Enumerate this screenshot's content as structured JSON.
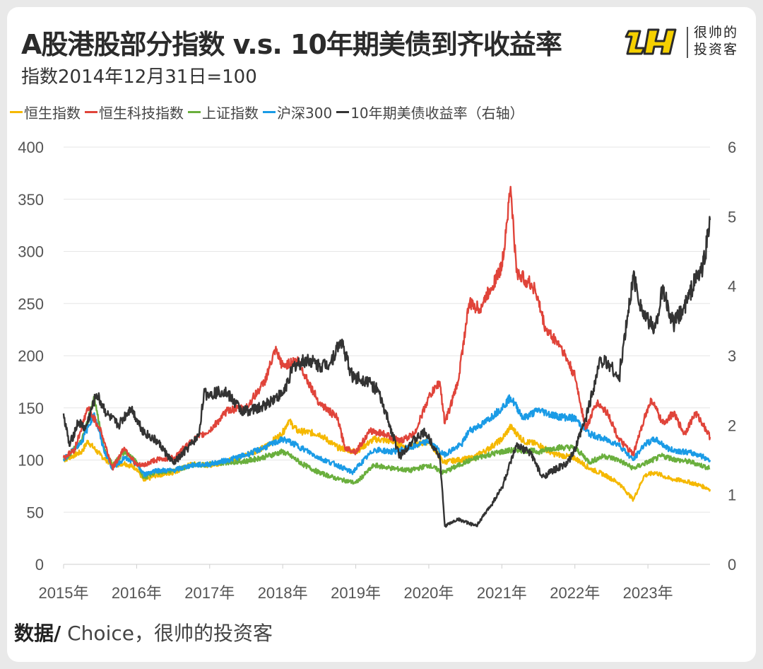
{
  "header": {
    "title": "A股港股部分指数 v.s. 10年期美债到齐收益率",
    "subtitle": "指数2014年12月31日=100"
  },
  "logo": {
    "line1": "很帅的",
    "line2": "投资客"
  },
  "source": {
    "label": "数据/",
    "text": " Choice，很帅的投资客"
  },
  "colors": {
    "hsi": "#f5b800",
    "hstech": "#e0443a",
    "sse": "#6aaf3d",
    "csi300": "#1a9be6",
    "ust10y": "#333333",
    "grid": "#e6e6e6",
    "axis_text": "#555555"
  },
  "chart_data": {
    "type": "line",
    "title": "A股港股部分指数 v.s. 10年期美债到齐收益率",
    "subtitle": "指数2014年12月31日=100",
    "x_tick_labels": [
      "2015年",
      "2016年",
      "2017年",
      "2018年",
      "2019年",
      "2020年",
      "2021年",
      "2022年",
      "2023年"
    ],
    "x_range": [
      2015.0,
      2023.85
    ],
    "y_left": {
      "ticks": [
        0,
        50,
        100,
        150,
        200,
        250,
        300,
        350,
        400
      ],
      "range": [
        0,
        400
      ]
    },
    "y_right": {
      "ticks": [
        0,
        1,
        2,
        3,
        4,
        5,
        6
      ],
      "range": [
        0,
        6
      ],
      "label": "10年期美债收益率（右轴）"
    },
    "legend_position": "top-left",
    "series": [
      {
        "key": "hsi",
        "name": "恒生指数",
        "axis": "left",
        "points": [
          [
            2015.0,
            100
          ],
          [
            2015.25,
            108
          ],
          [
            2015.33,
            118
          ],
          [
            2015.5,
            105
          ],
          [
            2015.67,
            95
          ],
          [
            2015.83,
            97
          ],
          [
            2016.0,
            92
          ],
          [
            2016.1,
            80
          ],
          [
            2016.25,
            85
          ],
          [
            2016.5,
            88
          ],
          [
            2016.75,
            96
          ],
          [
            2017.0,
            95
          ],
          [
            2017.25,
            99
          ],
          [
            2017.5,
            105
          ],
          [
            2017.75,
            112
          ],
          [
            2018.0,
            126
          ],
          [
            2018.08,
            138
          ],
          [
            2018.2,
            128
          ],
          [
            2018.5,
            125
          ],
          [
            2018.75,
            112
          ],
          [
            2019.0,
            108
          ],
          [
            2019.25,
            120
          ],
          [
            2019.5,
            118
          ],
          [
            2019.7,
            112
          ],
          [
            2020.0,
            118
          ],
          [
            2020.2,
            98
          ],
          [
            2020.4,
            100
          ],
          [
            2020.6,
            102
          ],
          [
            2020.8,
            110
          ],
          [
            2021.0,
            120
          ],
          [
            2021.12,
            132
          ],
          [
            2021.3,
            118
          ],
          [
            2021.5,
            115
          ],
          [
            2021.7,
            106
          ],
          [
            2022.0,
            102
          ],
          [
            2022.2,
            92
          ],
          [
            2022.4,
            86
          ],
          [
            2022.6,
            78
          ],
          [
            2022.8,
            62
          ],
          [
            2022.95,
            85
          ],
          [
            2023.1,
            88
          ],
          [
            2023.3,
            82
          ],
          [
            2023.5,
            80
          ],
          [
            2023.7,
            76
          ],
          [
            2023.85,
            72
          ]
        ]
      },
      {
        "key": "hstech",
        "name": "恒生科技指数",
        "axis": "left",
        "points": [
          [
            2015.0,
            102
          ],
          [
            2015.15,
            110
          ],
          [
            2015.33,
            150
          ],
          [
            2015.5,
            130
          ],
          [
            2015.67,
            92
          ],
          [
            2015.83,
            112
          ],
          [
            2016.0,
            95
          ],
          [
            2016.1,
            95
          ],
          [
            2016.25,
            100
          ],
          [
            2016.5,
            102
          ],
          [
            2016.75,
            118
          ],
          [
            2017.0,
            128
          ],
          [
            2017.25,
            148
          ],
          [
            2017.5,
            150
          ],
          [
            2017.75,
            175
          ],
          [
            2017.9,
            205
          ],
          [
            2018.0,
            190
          ],
          [
            2018.2,
            196
          ],
          [
            2018.35,
            175
          ],
          [
            2018.5,
            155
          ],
          [
            2018.75,
            140
          ],
          [
            2018.85,
            112
          ],
          [
            2019.0,
            108
          ],
          [
            2019.2,
            128
          ],
          [
            2019.4,
            125
          ],
          [
            2019.6,
            118
          ],
          [
            2019.8,
            125
          ],
          [
            2020.0,
            160
          ],
          [
            2020.15,
            175
          ],
          [
            2020.22,
            135
          ],
          [
            2020.4,
            175
          ],
          [
            2020.55,
            250
          ],
          [
            2020.7,
            245
          ],
          [
            2020.85,
            265
          ],
          [
            2021.0,
            285
          ],
          [
            2021.12,
            362
          ],
          [
            2021.2,
            280
          ],
          [
            2021.45,
            265
          ],
          [
            2021.6,
            225
          ],
          [
            2021.8,
            210
          ],
          [
            2022.0,
            180
          ],
          [
            2022.15,
            130
          ],
          [
            2022.3,
            155
          ],
          [
            2022.45,
            145
          ],
          [
            2022.6,
            120
          ],
          [
            2022.8,
            105
          ],
          [
            2022.95,
            140
          ],
          [
            2023.05,
            158
          ],
          [
            2023.2,
            135
          ],
          [
            2023.35,
            145
          ],
          [
            2023.5,
            125
          ],
          [
            2023.65,
            145
          ],
          [
            2023.75,
            135
          ],
          [
            2023.85,
            122
          ]
        ]
      },
      {
        "key": "sse",
        "name": "上证指数",
        "axis": "left",
        "points": [
          [
            2015.0,
            100
          ],
          [
            2015.25,
            118
          ],
          [
            2015.42,
            160
          ],
          [
            2015.55,
            112
          ],
          [
            2015.67,
            95
          ],
          [
            2015.83,
            108
          ],
          [
            2016.0,
            98
          ],
          [
            2016.1,
            83
          ],
          [
            2016.25,
            88
          ],
          [
            2016.5,
            90
          ],
          [
            2016.75,
            95
          ],
          [
            2017.0,
            96
          ],
          [
            2017.25,
            98
          ],
          [
            2017.5,
            99
          ],
          [
            2017.75,
            103
          ],
          [
            2018.0,
            108
          ],
          [
            2018.08,
            105
          ],
          [
            2018.3,
            95
          ],
          [
            2018.5,
            88
          ],
          [
            2018.75,
            82
          ],
          [
            2019.0,
            78
          ],
          [
            2019.25,
            95
          ],
          [
            2019.5,
            92
          ],
          [
            2019.75,
            90
          ],
          [
            2020.0,
            95
          ],
          [
            2020.2,
            88
          ],
          [
            2020.5,
            98
          ],
          [
            2020.75,
            104
          ],
          [
            2021.0,
            108
          ],
          [
            2021.2,
            110
          ],
          [
            2021.5,
            108
          ],
          [
            2021.75,
            112
          ],
          [
            2022.0,
            112
          ],
          [
            2022.2,
            98
          ],
          [
            2022.4,
            104
          ],
          [
            2022.6,
            100
          ],
          [
            2022.8,
            92
          ],
          [
            2023.0,
            98
          ],
          [
            2023.2,
            104
          ],
          [
            2023.4,
            100
          ],
          [
            2023.6,
            98
          ],
          [
            2023.85,
            92
          ]
        ]
      },
      {
        "key": "csi300",
        "name": "沪深300",
        "axis": "left",
        "points": [
          [
            2015.0,
            100
          ],
          [
            2015.25,
            118
          ],
          [
            2015.42,
            145
          ],
          [
            2015.55,
            110
          ],
          [
            2015.67,
            92
          ],
          [
            2015.83,
            102
          ],
          [
            2016.0,
            96
          ],
          [
            2016.1,
            86
          ],
          [
            2016.25,
            90
          ],
          [
            2016.5,
            90
          ],
          [
            2016.75,
            95
          ],
          [
            2017.0,
            96
          ],
          [
            2017.25,
            100
          ],
          [
            2017.5,
            105
          ],
          [
            2017.75,
            112
          ],
          [
            2018.0,
            120
          ],
          [
            2018.08,
            118
          ],
          [
            2018.3,
            110
          ],
          [
            2018.5,
            102
          ],
          [
            2018.75,
            95
          ],
          [
            2018.95,
            88
          ],
          [
            2019.25,
            110
          ],
          [
            2019.5,
            108
          ],
          [
            2019.75,
            112
          ],
          [
            2020.0,
            118
          ],
          [
            2020.2,
            105
          ],
          [
            2020.45,
            115
          ],
          [
            2020.55,
            128
          ],
          [
            2020.75,
            135
          ],
          [
            2021.0,
            150
          ],
          [
            2021.12,
            160
          ],
          [
            2021.3,
            140
          ],
          [
            2021.5,
            148
          ],
          [
            2021.75,
            142
          ],
          [
            2022.0,
            140
          ],
          [
            2022.2,
            125
          ],
          [
            2022.4,
            120
          ],
          [
            2022.6,
            115
          ],
          [
            2022.8,
            100
          ],
          [
            2022.95,
            115
          ],
          [
            2023.1,
            120
          ],
          [
            2023.3,
            110
          ],
          [
            2023.5,
            108
          ],
          [
            2023.7,
            105
          ],
          [
            2023.85,
            100
          ]
        ]
      },
      {
        "key": "ust10y",
        "name": "10年期美债收益率（右轴）",
        "axis": "right",
        "points": [
          [
            2015.0,
            2.17
          ],
          [
            2015.08,
            1.7
          ],
          [
            2015.2,
            2.05
          ],
          [
            2015.3,
            1.95
          ],
          [
            2015.45,
            2.45
          ],
          [
            2015.6,
            2.15
          ],
          [
            2015.75,
            2.0
          ],
          [
            2015.92,
            2.25
          ],
          [
            2016.1,
            1.9
          ],
          [
            2016.3,
            1.75
          ],
          [
            2016.5,
            1.45
          ],
          [
            2016.6,
            1.55
          ],
          [
            2016.85,
            1.85
          ],
          [
            2016.92,
            2.45
          ],
          [
            2017.0,
            2.45
          ],
          [
            2017.2,
            2.5
          ],
          [
            2017.45,
            2.2
          ],
          [
            2017.7,
            2.25
          ],
          [
            2017.9,
            2.4
          ],
          [
            2018.0,
            2.45
          ],
          [
            2018.15,
            2.85
          ],
          [
            2018.35,
            2.95
          ],
          [
            2018.5,
            2.85
          ],
          [
            2018.65,
            2.9
          ],
          [
            2018.8,
            3.22
          ],
          [
            2018.95,
            2.7
          ],
          [
            2019.15,
            2.65
          ],
          [
            2019.3,
            2.5
          ],
          [
            2019.45,
            2.05
          ],
          [
            2019.6,
            1.55
          ],
          [
            2019.75,
            1.75
          ],
          [
            2019.95,
            1.9
          ],
          [
            2020.15,
            1.55
          ],
          [
            2020.22,
            0.55
          ],
          [
            2020.4,
            0.65
          ],
          [
            2020.65,
            0.55
          ],
          [
            2020.85,
            0.85
          ],
          [
            2021.0,
            1.1
          ],
          [
            2021.2,
            1.7
          ],
          [
            2021.4,
            1.6
          ],
          [
            2021.55,
            1.25
          ],
          [
            2021.7,
            1.35
          ],
          [
            2021.9,
            1.45
          ],
          [
            2022.0,
            1.65
          ],
          [
            2022.15,
            2.1
          ],
          [
            2022.35,
            2.95
          ],
          [
            2022.5,
            2.85
          ],
          [
            2022.6,
            2.65
          ],
          [
            2022.8,
            4.15
          ],
          [
            2022.95,
            3.55
          ],
          [
            2023.1,
            3.4
          ],
          [
            2023.2,
            3.95
          ],
          [
            2023.35,
            3.45
          ],
          [
            2023.5,
            3.7
          ],
          [
            2023.65,
            4.1
          ],
          [
            2023.75,
            4.25
          ],
          [
            2023.85,
            4.95
          ]
        ]
      }
    ]
  }
}
